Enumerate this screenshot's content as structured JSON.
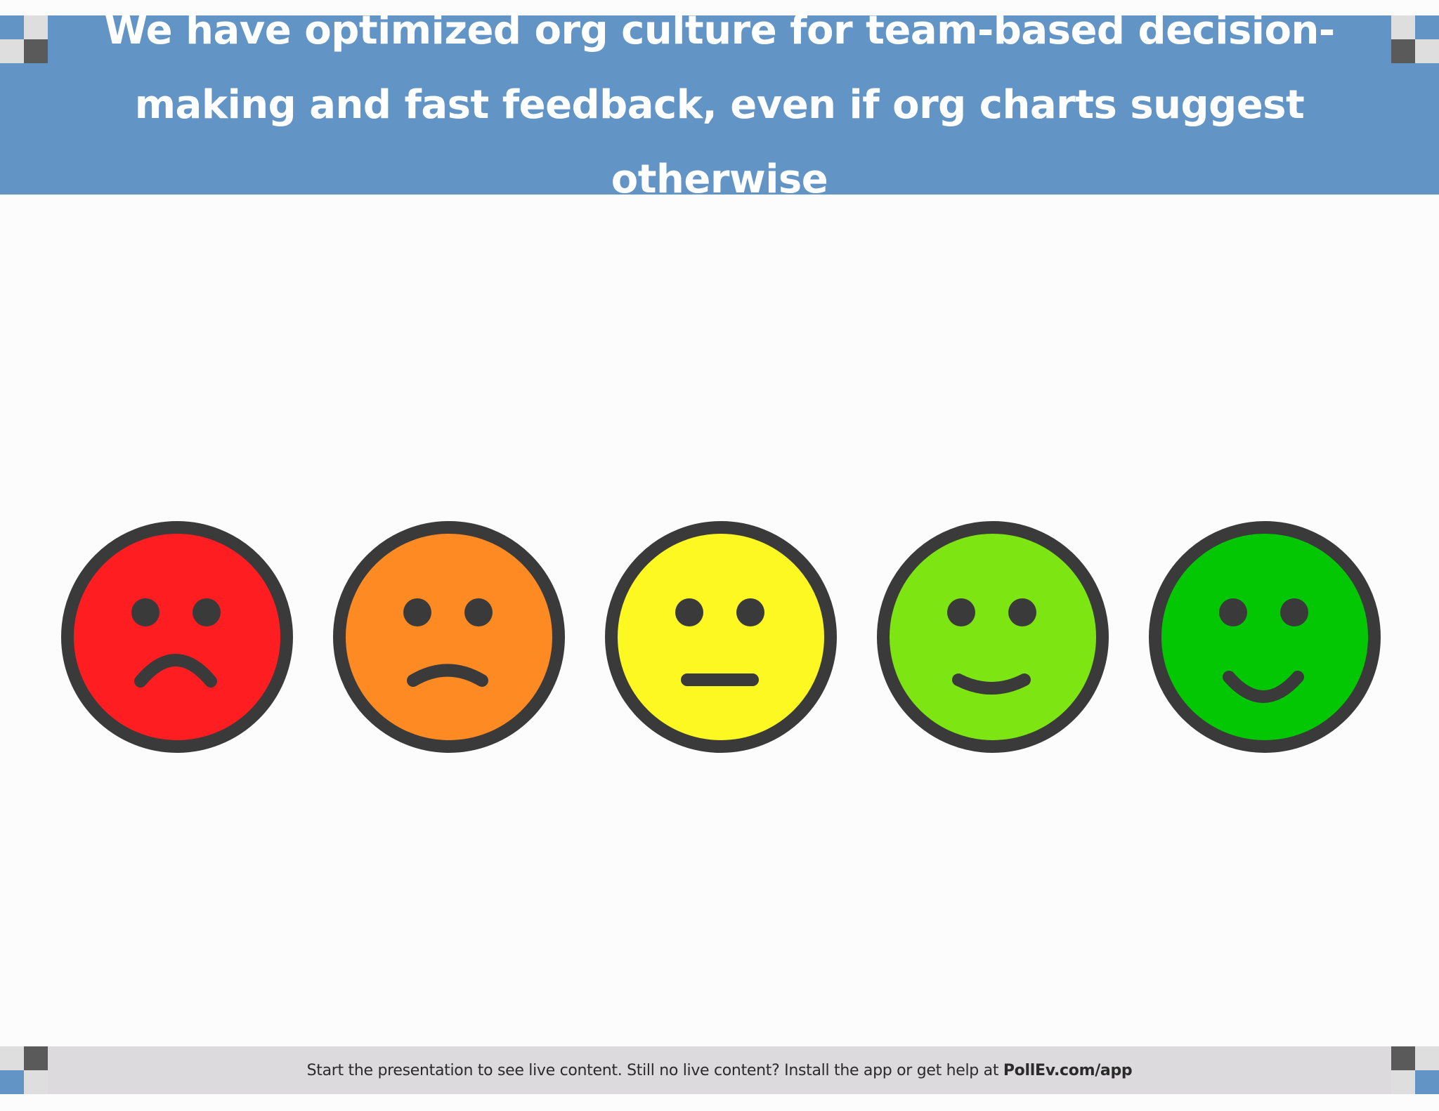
{
  "slide": {
    "title": "We have optimized org culture for team-based decision-making and fast feedback, even if org charts suggest otherwise"
  },
  "faces": [
    {
      "name": "very-sad-face-icon",
      "color": "#fe1e22",
      "mood": "very-sad"
    },
    {
      "name": "sad-face-icon",
      "color": "#fd8a22",
      "mood": "sad"
    },
    {
      "name": "neutral-face-icon",
      "color": "#fdf722",
      "mood": "neutral"
    },
    {
      "name": "happy-face-icon",
      "color": "#7de512",
      "mood": "happy"
    },
    {
      "name": "very-happy-face-icon",
      "color": "#04c704",
      "mood": "very-happy"
    }
  ],
  "footer": {
    "text": "Start the presentation to see live content. Still no live content? Install the app or get help at ",
    "link_text": "PollEv.com/app"
  },
  "colors": {
    "title_bar": "#6295c6",
    "footer_bar": "#dcdadc",
    "face_outline": "#3a3a3a",
    "corner_dark": "#5a5a5a",
    "corner_light": "#dedede",
    "corner_blue": "#6295c6"
  }
}
